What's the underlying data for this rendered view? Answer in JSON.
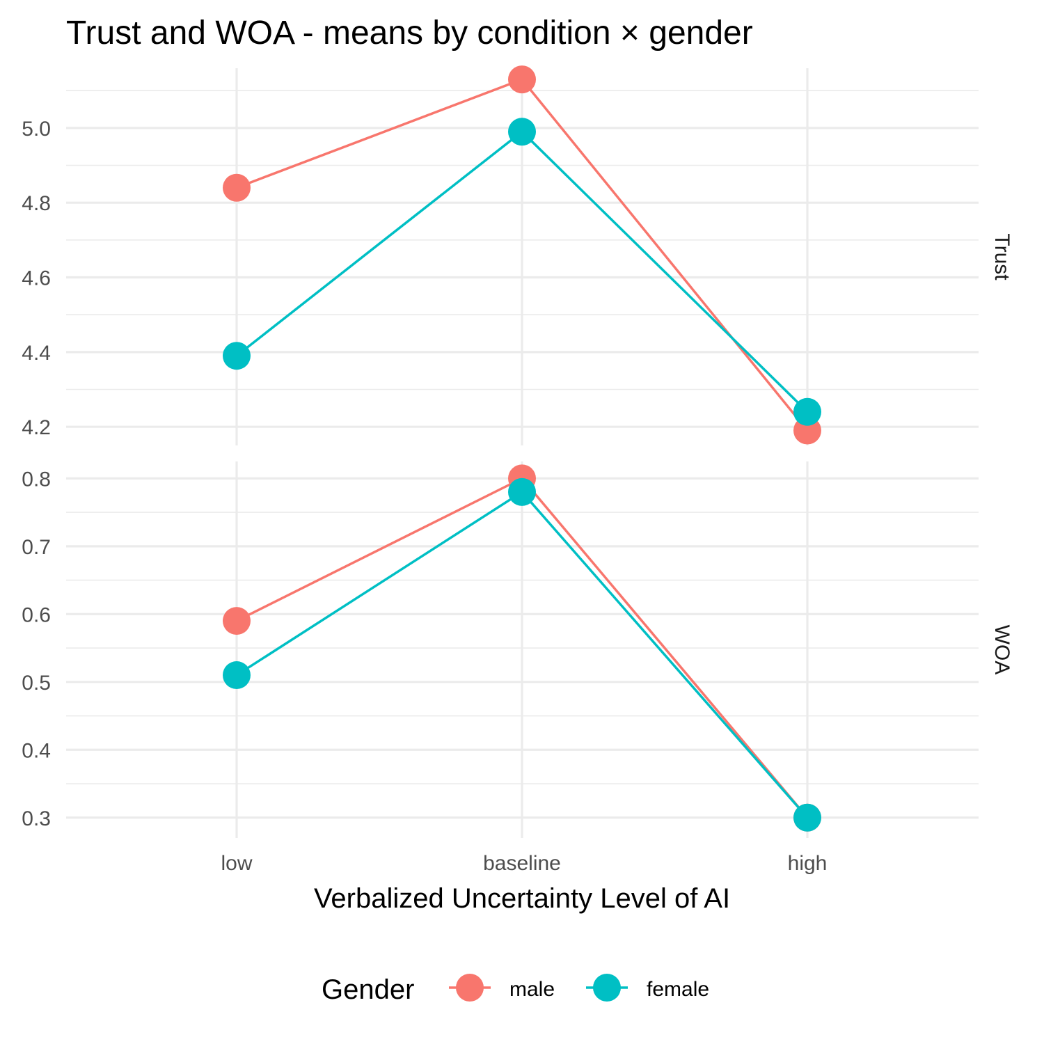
{
  "chart_data": {
    "type": "line",
    "title": "Trust and WOA - means by condition × gender",
    "xlabel": "Verbalized Uncertainty Level of AI",
    "categories": [
      "low",
      "baseline",
      "high"
    ],
    "legend": {
      "title": "Gender",
      "position": "bottom"
    },
    "grid": true,
    "colors": {
      "male": "#F8766D",
      "female": "#00BFC4"
    },
    "panels": [
      {
        "strip_label": "Trust",
        "ylim": [
          4.15,
          5.16
        ],
        "yticks": [
          4.2,
          4.4,
          4.6,
          4.8,
          5.0
        ],
        "ytick_labels": [
          "4.2",
          "4.4",
          "4.6",
          "4.8",
          "5.0"
        ],
        "series": [
          {
            "name": "male",
            "values": [
              4.84,
              5.13,
              4.19
            ]
          },
          {
            "name": "female",
            "values": [
              4.39,
              4.99,
              4.24
            ]
          }
        ]
      },
      {
        "strip_label": "WOA",
        "ylim": [
          0.27,
          0.825
        ],
        "yticks": [
          0.3,
          0.4,
          0.5,
          0.6,
          0.7,
          0.8
        ],
        "ytick_labels": [
          "0.3",
          "0.4",
          "0.5",
          "0.6",
          "0.7",
          "0.8"
        ],
        "series": [
          {
            "name": "male",
            "values": [
              0.59,
              0.8,
              0.3
            ]
          },
          {
            "name": "female",
            "values": [
              0.51,
              0.78,
              0.3
            ]
          }
        ]
      }
    ]
  }
}
